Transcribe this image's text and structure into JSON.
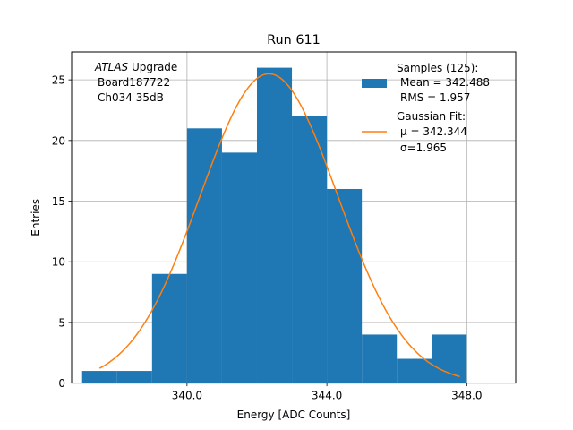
{
  "chart_data": {
    "type": "histogram",
    "title": "Run 611",
    "xlabel": "Energy [ADC Counts]",
    "ylabel": "Entries",
    "xlim": [
      336.7,
      349.4
    ],
    "ylim": [
      0,
      27.3
    ],
    "grid": true,
    "x_ticks": [
      {
        "value": 340,
        "label": "340.0"
      },
      {
        "value": 344,
        "label": "344.0"
      },
      {
        "value": 348,
        "label": "348.0"
      }
    ],
    "y_ticks": [
      {
        "value": 0,
        "label": "0"
      },
      {
        "value": 5,
        "label": "5"
      },
      {
        "value": 10,
        "label": "10"
      },
      {
        "value": 15,
        "label": "15"
      },
      {
        "value": 20,
        "label": "20"
      },
      {
        "value": 25,
        "label": "25"
      }
    ],
    "bins": [
      {
        "x0": 337.0,
        "x1": 338.0,
        "count": 1
      },
      {
        "x0": 338.0,
        "x1": 339.0,
        "count": 1
      },
      {
        "x0": 339.0,
        "x1": 340.0,
        "count": 9
      },
      {
        "x0": 340.0,
        "x1": 341.0,
        "count": 21
      },
      {
        "x0": 341.0,
        "x1": 342.0,
        "count": 19
      },
      {
        "x0": 342.0,
        "x1": 343.0,
        "count": 26
      },
      {
        "x0": 343.0,
        "x1": 344.0,
        "count": 22
      },
      {
        "x0": 344.0,
        "x1": 345.0,
        "count": 16
      },
      {
        "x0": 345.0,
        "x1": 346.0,
        "count": 4
      },
      {
        "x0": 346.0,
        "x1": 347.0,
        "count": 2
      },
      {
        "x0": 347.0,
        "x1": 348.0,
        "count": 4
      },
      {
        "x0": 348.0,
        "x1": 349.0,
        "count": 0
      }
    ],
    "fit": {
      "type": "gaussian",
      "mu": 342.344,
      "sigma": 1.965,
      "amplitude": 25.5,
      "x_range": [
        337.5,
        347.8
      ]
    },
    "colors": {
      "histogram": "#1f77b4",
      "fit": "#ff7f0e",
      "grid": "#b0b0b0"
    },
    "annotation": {
      "italic": "ATLAS",
      "rest": " Upgrade",
      "line2": "Board187722",
      "line3": "Ch034 35dB"
    },
    "legend": {
      "placement": "top-right",
      "samples_title": "Samples (125):",
      "samples_mean": "Mean = 342.488",
      "samples_rms": "RMS = 1.957",
      "fit_title": "Gaussian Fit:",
      "fit_mu": "μ = 342.344",
      "fit_sigma": "σ=1.965"
    }
  }
}
